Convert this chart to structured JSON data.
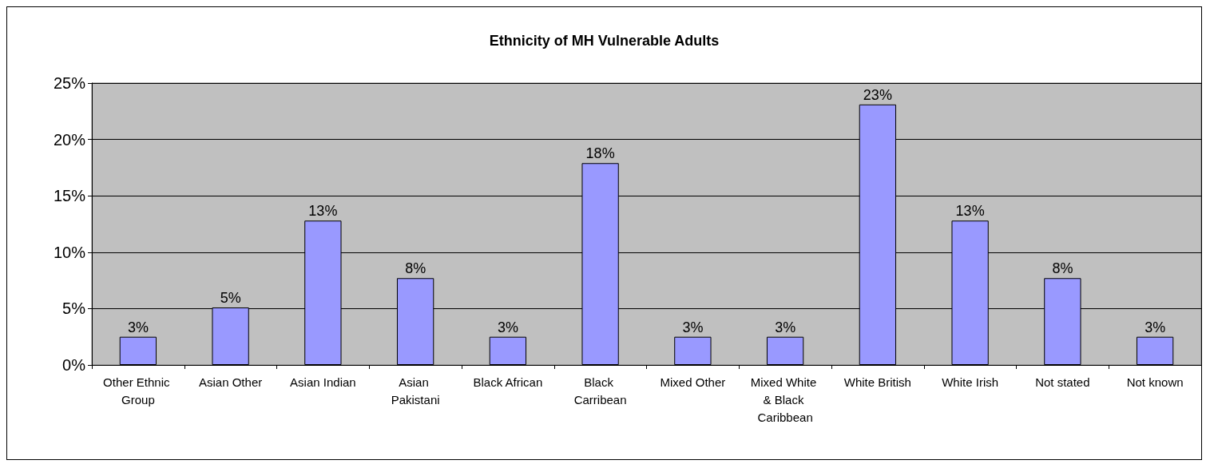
{
  "chart_data": {
    "type": "bar",
    "title": "Ethnicity of MH Vulnerable Adults",
    "categories": [
      "Other Ethnic Group",
      "Asian Other",
      "Asian Indian",
      "Asian Pakistani",
      "Black African",
      "Black Carribean",
      "Mixed Other",
      "Mixed White & Black Caribbean",
      "White British",
      "White Irish",
      "Not stated",
      "Not known"
    ],
    "values": [
      2.5,
      5.1,
      12.8,
      7.7,
      2.5,
      17.9,
      2.5,
      2.5,
      23.1,
      12.8,
      7.7,
      2.5
    ],
    "value_labels": [
      "3%",
      "5%",
      "13%",
      "8%",
      "3%",
      "18%",
      "3%",
      "3%",
      "23%",
      "13%",
      "8%",
      "3%"
    ],
    "color": "#9999ff",
    "ylim": [
      0,
      25
    ],
    "yticks": [
      {
        "value": 0,
        "label": "0%"
      },
      {
        "value": 5,
        "label": "5%"
      },
      {
        "value": 10,
        "label": "10%"
      },
      {
        "value": 15,
        "label": "15%"
      },
      {
        "value": 20,
        "label": "20%"
      },
      {
        "value": 25,
        "label": "25%"
      }
    ],
    "grid": "y"
  }
}
